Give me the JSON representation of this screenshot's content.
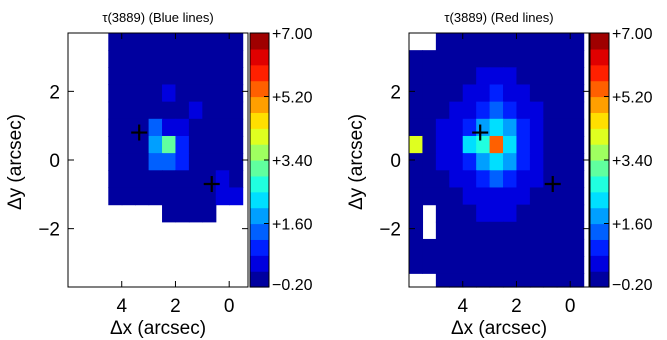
{
  "chart_data": [
    {
      "type": "heatmap",
      "title": "τ(3889) (Blue lines)",
      "xlabel": "Δx (arcsec)",
      "ylabel": "Δy (arcsec)",
      "xlim": [
        6.0,
        -0.7
      ],
      "ylim": [
        -3.7,
        3.7
      ],
      "x_ticks": [
        4,
        2,
        0
      ],
      "y_ticks": [
        2,
        0,
        -2
      ],
      "x_tick_labels": [
        "4",
        "2",
        "0"
      ],
      "y_tick_labels": [
        "2",
        "0",
        "−2"
      ],
      "colorbar": {
        "min": -0.2,
        "max": 7.0,
        "levels": 16,
        "tick_values": [
          7.0,
          5.2,
          3.4,
          1.6,
          -0.2
        ],
        "tick_labels": [
          "+7.00",
          "+5.20",
          "+3.40",
          "+1.60",
          "−0.20"
        ]
      },
      "pixel_size": 0.5,
      "grid_x_start": 6.0,
      "grid_y_top": 3.7,
      "values": [
        [
          null,
          null,
          null,
          0.1,
          0.1,
          0.1,
          0.1,
          0.1,
          0.1,
          0.1,
          0.1,
          0.1,
          0.1
        ],
        [
          null,
          null,
          null,
          0.1,
          0.1,
          0.1,
          0.1,
          0.1,
          0.1,
          0.1,
          0.1,
          0.1,
          0.1
        ],
        [
          null,
          null,
          null,
          0.1,
          0.1,
          0.1,
          0.1,
          0.1,
          0.1,
          0.1,
          0.1,
          0.1,
          0.1
        ],
        [
          null,
          null,
          null,
          0.1,
          0.1,
          0.1,
          0.1,
          0.3,
          0.1,
          0.1,
          0.1,
          0.1,
          0.1
        ],
        [
          null,
          null,
          null,
          0.1,
          0.1,
          0.1,
          0.1,
          0.1,
          0.1,
          0.3,
          0.1,
          0.1,
          0.1
        ],
        [
          null,
          null,
          null,
          0.1,
          0.1,
          0.1,
          1.3,
          0.5,
          0.3,
          0.1,
          0.1,
          0.1,
          0.1
        ],
        [
          null,
          null,
          null,
          0.1,
          0.1,
          0.1,
          1.6,
          3.0,
          0.9,
          0.1,
          0.1,
          0.1,
          0.1
        ],
        [
          null,
          null,
          null,
          0.1,
          0.1,
          0.1,
          1.2,
          1.3,
          0.8,
          0.1,
          0.1,
          0.1,
          0.1
        ],
        [
          null,
          null,
          null,
          0.1,
          0.1,
          0.1,
          0.1,
          0.1,
          0.1,
          0.1,
          0.1,
          0.3,
          0.1
        ],
        [
          null,
          null,
          null,
          0.1,
          0.1,
          0.1,
          0.1,
          0.1,
          0.1,
          0.1,
          0.1,
          0.5,
          0.4
        ],
        [
          null,
          null,
          null,
          null,
          null,
          null,
          null,
          0.1,
          0.1,
          0.1,
          0.1,
          null,
          null
        ],
        [
          null,
          null,
          null,
          null,
          null,
          null,
          null,
          null,
          null,
          null,
          null,
          null,
          null
        ],
        [
          null,
          null,
          null,
          null,
          null,
          null,
          null,
          null,
          null,
          null,
          null,
          null,
          null
        ],
        [
          null,
          null,
          null,
          null,
          null,
          null,
          null,
          null,
          null,
          null,
          null,
          null,
          null
        ],
        [
          null,
          null,
          null,
          null,
          null,
          null,
          null,
          null,
          null,
          null,
          null,
          null,
          null
        ]
      ],
      "markers": [
        {
          "x": 3.35,
          "y": 0.8
        },
        {
          "x": 0.65,
          "y": -0.7
        }
      ]
    },
    {
      "type": "heatmap",
      "title": "τ(3889) (Red lines)",
      "xlabel": "Δx (arcsec)",
      "ylabel": "Δy (arcsec)",
      "xlim": [
        6.0,
        -0.7
      ],
      "ylim": [
        -3.7,
        3.7
      ],
      "x_ticks": [
        4,
        2,
        0
      ],
      "y_ticks": [
        2,
        0,
        -2
      ],
      "x_tick_labels": [
        "4",
        "2",
        "0"
      ],
      "y_tick_labels": [
        "2",
        "0",
        "−2"
      ],
      "colorbar": {
        "min": -0.2,
        "max": 7.0,
        "levels": 16,
        "tick_values": [
          7.0,
          5.2,
          3.4,
          1.6,
          -0.2
        ],
        "tick_labels": [
          "+7.00",
          "+5.20",
          "+3.40",
          "+1.60",
          "−0.20"
        ]
      },
      "pixel_size": 0.5,
      "grid_x_start": 6.0,
      "grid_y_top": 3.7,
      "values": [
        [
          null,
          null,
          0.1,
          0.1,
          0.1,
          0.1,
          0.1,
          0.1,
          0.1,
          0.1,
          0.1,
          0.1,
          0.1
        ],
        [
          0.1,
          0.1,
          0.1,
          0.1,
          0.1,
          0.1,
          0.1,
          0.1,
          0.1,
          0.1,
          0.1,
          0.1,
          0.1
        ],
        [
          0.1,
          0.1,
          0.1,
          0.1,
          0.1,
          0.3,
          0.3,
          0.3,
          0.1,
          0.1,
          0.1,
          0.1,
          0.1
        ],
        [
          0.1,
          0.1,
          0.1,
          0.1,
          0.3,
          0.5,
          0.9,
          0.5,
          0.3,
          0.1,
          0.1,
          0.1,
          0.1
        ],
        [
          0.1,
          0.1,
          0.1,
          0.3,
          0.5,
          0.9,
          1.3,
          0.9,
          0.5,
          0.3,
          0.1,
          0.1,
          0.1
        ],
        [
          0.1,
          0.1,
          0.3,
          0.5,
          1.0,
          2.0,
          2.3,
          1.7,
          0.8,
          0.3,
          0.1,
          0.1,
          0.1
        ],
        [
          4.0,
          0.1,
          0.3,
          0.6,
          2.3,
          2.6,
          5.5,
          2.4,
          1.0,
          0.4,
          0.1,
          0.1,
          0.1
        ],
        [
          0.1,
          0.1,
          0.3,
          0.5,
          1.0,
          1.6,
          2.3,
          1.6,
          0.9,
          0.3,
          0.1,
          0.1,
          0.1
        ],
        [
          0.1,
          0.1,
          0.1,
          0.3,
          0.5,
          0.9,
          1.3,
          0.9,
          0.5,
          0.3,
          0.1,
          0.1,
          0.1
        ],
        [
          0.1,
          0.1,
          0.1,
          0.1,
          0.3,
          0.5,
          0.6,
          0.5,
          0.3,
          0.1,
          0.1,
          0.1,
          0.1
        ],
        [
          0.1,
          null,
          0.1,
          0.1,
          0.1,
          0.3,
          0.3,
          0.3,
          0.1,
          0.1,
          0.1,
          0.1,
          0.1
        ],
        [
          0.1,
          null,
          0.1,
          0.1,
          0.1,
          0.1,
          0.1,
          0.1,
          0.1,
          0.1,
          0.1,
          0.1,
          0.1
        ],
        [
          0.1,
          0.1,
          0.1,
          0.1,
          0.1,
          0.1,
          0.1,
          0.1,
          0.1,
          0.1,
          0.1,
          0.1,
          0.1
        ],
        [
          0.1,
          0.1,
          0.1,
          0.1,
          0.1,
          0.1,
          0.1,
          0.1,
          0.1,
          0.1,
          0.1,
          0.1,
          0.1
        ],
        [
          null,
          null,
          0.1,
          0.1,
          0.1,
          0.1,
          0.1,
          0.1,
          0.1,
          0.1,
          0.1,
          0.1,
          0.1
        ]
      ],
      "markers": [
        {
          "x": 3.35,
          "y": 0.8
        },
        {
          "x": 0.65,
          "y": -0.7
        }
      ]
    }
  ]
}
